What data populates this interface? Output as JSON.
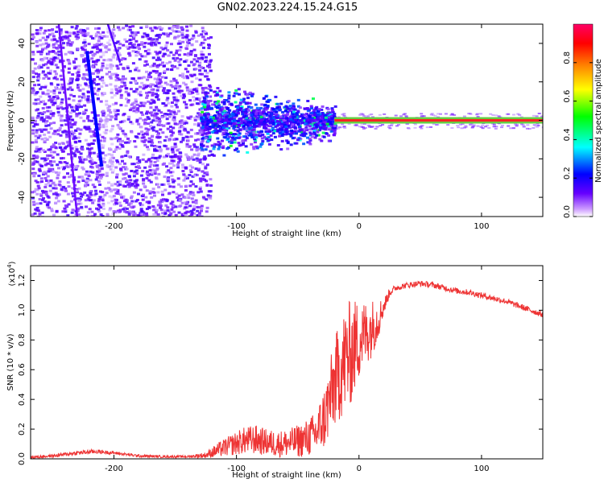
{
  "figure": {
    "title": "GN02.2023.224.15.24.G15"
  },
  "chart_data": [
    {
      "type": "heatmap",
      "title": "GN02.2023.224.15.24.G15",
      "xlabel": "Height of straight line (km)",
      "ylabel": "Frequency (Hz)",
      "xlim": [
        -268,
        150
      ],
      "ylim": [
        -50,
        50
      ],
      "x_ticks": [
        -200,
        -100,
        0,
        100
      ],
      "y_ticks": [
        -40,
        -20,
        0,
        20,
        40
      ],
      "colorbar": {
        "label": "Normalized spectral amplitude",
        "range": [
          0.0,
          1.0
        ],
        "ticks": [
          "0.0",
          "0.2",
          "0.4",
          "0.6",
          "0.8"
        ],
        "colormap": [
          "#ffffff",
          "#6600ff",
          "#0000ff",
          "#00ffff",
          "#00ff00",
          "#ffff00",
          "#ff8800",
          "#ff0000",
          "#ff0066"
        ]
      },
      "features": {
        "noise_region_x": [
          -268,
          -130
        ],
        "transition_region_x": [
          -130,
          -20
        ],
        "carrier_line_freq": 0,
        "carrier_line_x": [
          -20,
          150
        ],
        "diagonal_tracks": [
          {
            "x": [
              -222,
              -210
            ],
            "y": [
              36,
              -24
            ],
            "amplitude": 0.25
          },
          {
            "x": [
              -245,
              -230
            ],
            "y": [
              50,
              -50
            ],
            "amplitude": 0.12
          },
          {
            "x": [
              -205,
              -195
            ],
            "y": [
              50,
              30
            ],
            "amplitude": 0.15
          }
        ]
      },
      "grid": false
    },
    {
      "type": "line",
      "xlabel": "Height of straight line (km)",
      "ylabel": "SNR (10 * v/v)",
      "y_multiplier_label": "(x10",
      "y_multiplier_exponent": "4",
      "y_multiplier_close": ")",
      "xlim": [
        -268,
        150
      ],
      "ylim": [
        0.0,
        1.3
      ],
      "x_ticks": [
        -200,
        -100,
        0,
        100
      ],
      "y_ticks": [
        "0.0",
        "0.2",
        "0.4",
        "0.6",
        "0.8",
        "1.0",
        "1.2"
      ],
      "series": [
        {
          "color": "#ee3333",
          "x": [
            -268,
            -250,
            -230,
            -215,
            -200,
            -180,
            -160,
            -140,
            -125,
            -115,
            -105,
            -95,
            -85,
            -75,
            -65,
            -55,
            -45,
            -35,
            -28,
            -22,
            -18,
            -14,
            -10,
            -6,
            -2,
            2,
            6,
            10,
            15,
            20,
            25,
            30,
            40,
            50,
            60,
            70,
            80,
            90,
            100,
            110,
            120,
            130,
            140,
            150
          ],
          "y": [
            0.01,
            0.02,
            0.04,
            0.05,
            0.04,
            0.02,
            0.015,
            0.015,
            0.025,
            0.06,
            0.09,
            0.12,
            0.13,
            0.11,
            0.1,
            0.11,
            0.13,
            0.17,
            0.28,
            0.45,
            0.55,
            0.62,
            0.68,
            0.72,
            0.78,
            0.82,
            0.85,
            0.88,
            0.93,
            1.02,
            1.12,
            1.15,
            1.17,
            1.18,
            1.17,
            1.15,
            1.13,
            1.12,
            1.1,
            1.08,
            1.06,
            1.03,
            1.0,
            0.97
          ],
          "noise": [
            0.01,
            0.01,
            0.015,
            0.015,
            0.01,
            0.01,
            0.008,
            0.008,
            0.02,
            0.05,
            0.07,
            0.09,
            0.1,
            0.09,
            0.09,
            0.1,
            0.12,
            0.15,
            0.22,
            0.28,
            0.32,
            0.35,
            0.38,
            0.35,
            0.3,
            0.25,
            0.22,
            0.2,
            0.15,
            0.06,
            0.03,
            0.02,
            0.02,
            0.02,
            0.02,
            0.02,
            0.02,
            0.02,
            0.02,
            0.02,
            0.02,
            0.02,
            0.02,
            0.02
          ]
        }
      ],
      "grid": false
    }
  ]
}
